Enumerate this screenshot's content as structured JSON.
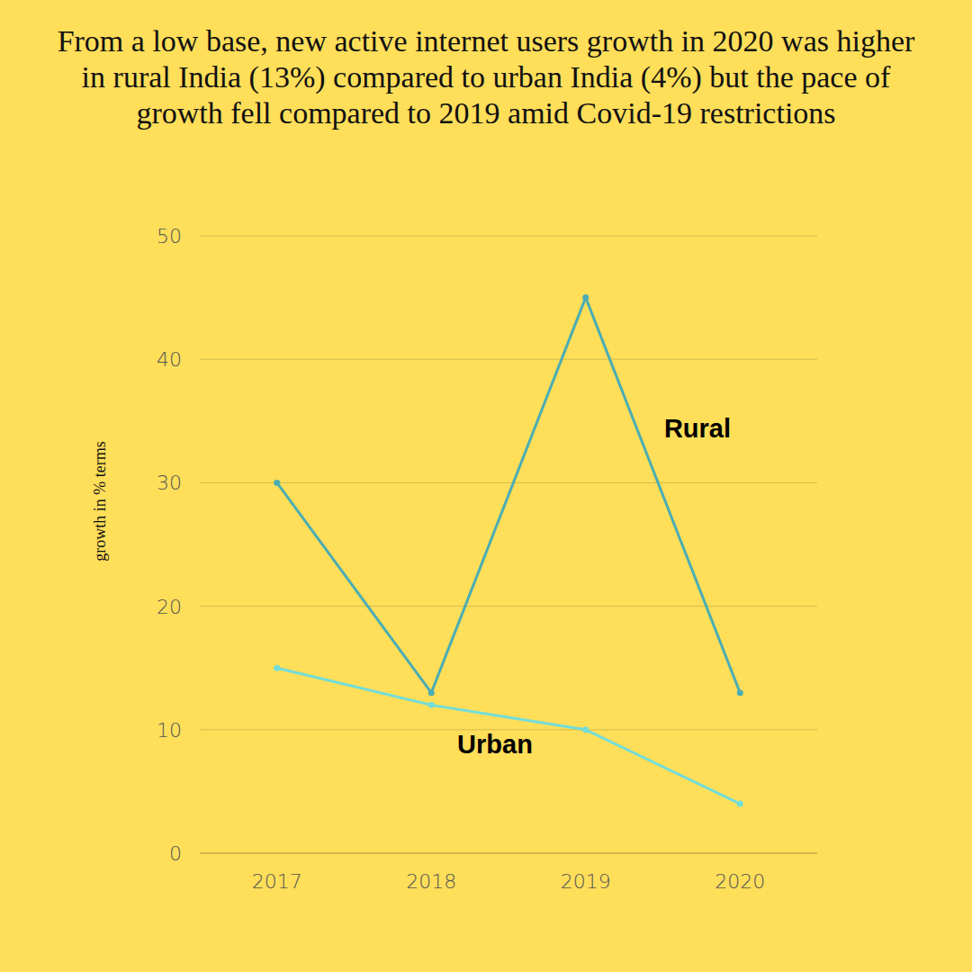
{
  "chart_data": {
    "type": "line",
    "title": "From a low base, new active internet users growth in 2020 was higher in rural India (13%) compared to urban India (4%) but the pace of growth fell compared to 2019 amid Covid-19 restrictions",
    "y_label": "growth in % terms",
    "categories": [
      "2017",
      "2018",
      "2019",
      "2020"
    ],
    "series": [
      {
        "name": "Rural",
        "color": "#4BADB3",
        "marker": "circle",
        "values": [
          30,
          13,
          45,
          13
        ]
      },
      {
        "name": "Urban",
        "color": "#72DDD9",
        "marker": "circle",
        "values": [
          15,
          12,
          10,
          4
        ]
      }
    ],
    "ylim": [
      0,
      50
    ],
    "yticks": [
      0,
      10,
      20,
      30,
      40,
      50
    ],
    "grid": true
  }
}
